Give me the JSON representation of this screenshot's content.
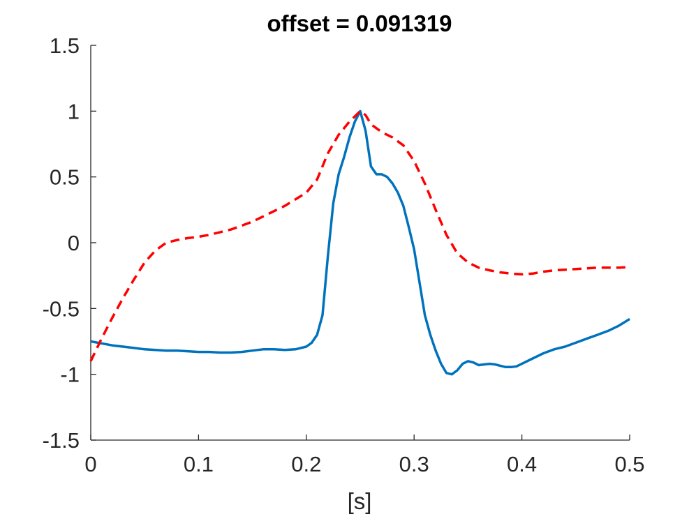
{
  "chart_data": {
    "type": "line",
    "title": "offset = 0.091319",
    "xlabel": "[s]",
    "ylabel": "",
    "xlim": [
      0,
      0.5
    ],
    "ylim": [
      -1.5,
      1.5
    ],
    "xticks": [
      "0",
      "0.1",
      "0.2",
      "0.3",
      "0.4",
      "0.5"
    ],
    "yticks": [
      "-1.5",
      "-1",
      "-0.5",
      "0",
      "0.5",
      "1",
      "1.5"
    ],
    "grid": false,
    "legend": "none",
    "series": [
      {
        "color": "#0072BD",
        "style": "solid",
        "x": [
          0,
          0.01,
          0.02,
          0.03,
          0.04,
          0.05,
          0.06,
          0.07,
          0.08,
          0.09,
          0.1,
          0.11,
          0.12,
          0.13,
          0.14,
          0.15,
          0.16,
          0.17,
          0.18,
          0.19,
          0.2,
          0.205,
          0.21,
          0.215,
          0.22,
          0.225,
          0.23,
          0.235,
          0.24,
          0.245,
          0.25,
          0.255,
          0.26,
          0.265,
          0.27,
          0.275,
          0.28,
          0.285,
          0.29,
          0.295,
          0.3,
          0.305,
          0.31,
          0.315,
          0.32,
          0.325,
          0.33,
          0.335,
          0.34,
          0.345,
          0.35,
          0.355,
          0.36,
          0.365,
          0.37,
          0.375,
          0.38,
          0.385,
          0.39,
          0.395,
          0.4,
          0.41,
          0.42,
          0.43,
          0.44,
          0.45,
          0.46,
          0.47,
          0.48,
          0.49,
          0.5
        ],
        "y": [
          -0.75,
          -0.765,
          -0.78,
          -0.79,
          -0.8,
          -0.81,
          -0.815,
          -0.82,
          -0.82,
          -0.825,
          -0.83,
          -0.83,
          -0.835,
          -0.835,
          -0.83,
          -0.82,
          -0.81,
          -0.81,
          -0.815,
          -0.81,
          -0.79,
          -0.76,
          -0.7,
          -0.55,
          -0.1,
          0.3,
          0.52,
          0.65,
          0.8,
          0.92,
          1.0,
          0.85,
          0.58,
          0.52,
          0.52,
          0.5,
          0.45,
          0.38,
          0.28,
          0.12,
          -0.05,
          -0.3,
          -0.55,
          -0.7,
          -0.82,
          -0.92,
          -0.99,
          -1.0,
          -0.97,
          -0.92,
          -0.9,
          -0.91,
          -0.93,
          -0.925,
          -0.92,
          -0.925,
          -0.935,
          -0.945,
          -0.945,
          -0.94,
          -0.92,
          -0.88,
          -0.84,
          -0.81,
          -0.79,
          -0.76,
          -0.73,
          -0.7,
          -0.67,
          -0.63,
          -0.58
        ]
      },
      {
        "color": "#FF0000",
        "style": "dashed",
        "x": [
          0,
          0.01,
          0.02,
          0.03,
          0.04,
          0.05,
          0.06,
          0.07,
          0.08,
          0.09,
          0.1,
          0.11,
          0.12,
          0.13,
          0.14,
          0.15,
          0.16,
          0.17,
          0.18,
          0.19,
          0.2,
          0.21,
          0.22,
          0.23,
          0.24,
          0.25,
          0.255,
          0.26,
          0.27,
          0.28,
          0.29,
          0.3,
          0.31,
          0.32,
          0.33,
          0.34,
          0.35,
          0.36,
          0.37,
          0.38,
          0.39,
          0.4,
          0.41,
          0.42,
          0.43,
          0.44,
          0.45,
          0.46,
          0.47,
          0.48,
          0.49,
          0.5
        ],
        "y": [
          -0.9,
          -0.73,
          -0.57,
          -0.42,
          -0.28,
          -0.15,
          -0.06,
          0.0,
          0.02,
          0.035,
          0.045,
          0.06,
          0.08,
          0.1,
          0.13,
          0.16,
          0.2,
          0.24,
          0.28,
          0.33,
          0.38,
          0.48,
          0.68,
          0.82,
          0.92,
          1.0,
          0.97,
          0.9,
          0.84,
          0.8,
          0.74,
          0.62,
          0.45,
          0.25,
          0.06,
          -0.08,
          -0.15,
          -0.19,
          -0.21,
          -0.225,
          -0.235,
          -0.24,
          -0.235,
          -0.22,
          -0.21,
          -0.205,
          -0.2,
          -0.195,
          -0.19,
          -0.19,
          -0.19,
          -0.185
        ]
      }
    ]
  }
}
